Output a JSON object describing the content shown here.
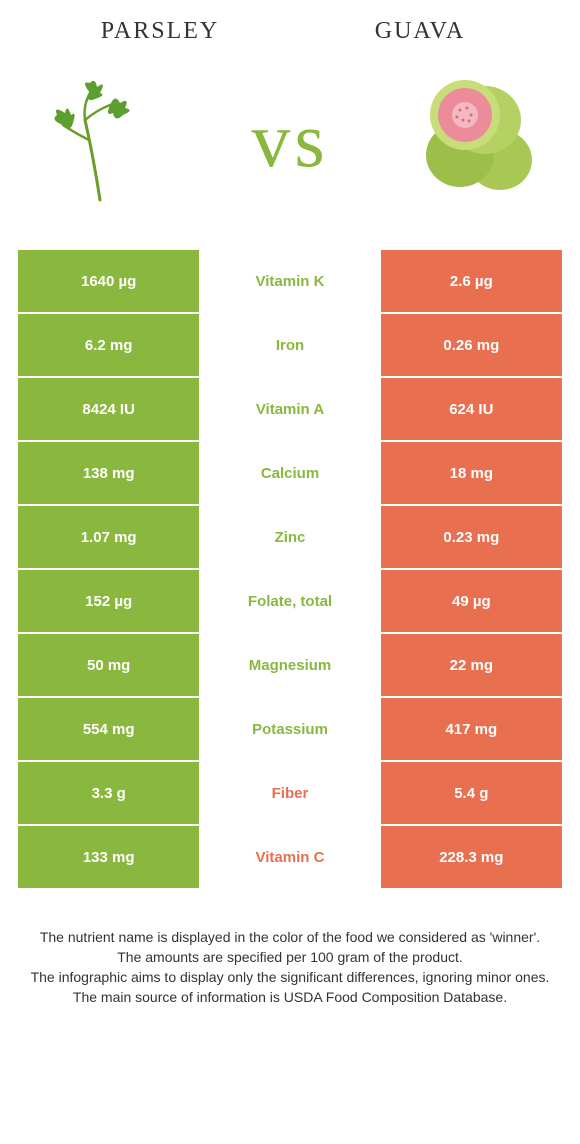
{
  "colors": {
    "left": "#8ab73e",
    "right": "#e86f4f",
    "white": "#ffffff",
    "text": "#333333"
  },
  "header": {
    "left_title": "Parsley",
    "right_title": "Guava",
    "vs": "vs"
  },
  "rows": [
    {
      "left": "1640 µg",
      "label": "Vitamin K",
      "right": "2.6 µg",
      "winner": "left"
    },
    {
      "left": "6.2 mg",
      "label": "Iron",
      "right": "0.26 mg",
      "winner": "left"
    },
    {
      "left": "8424 IU",
      "label": "Vitamin A",
      "right": "624 IU",
      "winner": "left"
    },
    {
      "left": "138 mg",
      "label": "Calcium",
      "right": "18 mg",
      "winner": "left"
    },
    {
      "left": "1.07 mg",
      "label": "Zinc",
      "right": "0.23 mg",
      "winner": "left"
    },
    {
      "left": "152 µg",
      "label": "Folate, total",
      "right": "49 µg",
      "winner": "left"
    },
    {
      "left": "50 mg",
      "label": "Magnesium",
      "right": "22 mg",
      "winner": "left"
    },
    {
      "left": "554 mg",
      "label": "Potassium",
      "right": "417 mg",
      "winner": "left"
    },
    {
      "left": "3.3 g",
      "label": "Fiber",
      "right": "5.4 g",
      "winner": "right"
    },
    {
      "left": "133 mg",
      "label": "Vitamin C",
      "right": "228.3 mg",
      "winner": "right"
    }
  ],
  "footnotes": [
    "The nutrient name is displayed in the color of the food we considered as 'winner'.",
    "The amounts are specified per 100 gram of the product.",
    "The infographic aims to display only the significant differences, ignoring minor ones.",
    "The main source of information is USDA Food Composition Database."
  ]
}
